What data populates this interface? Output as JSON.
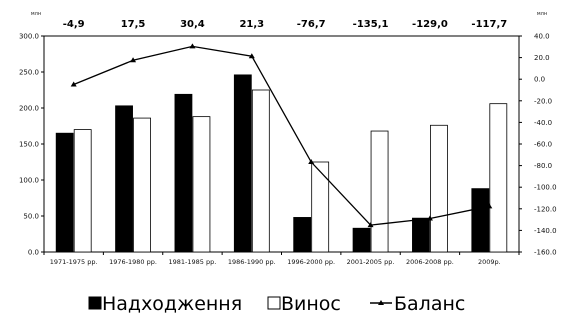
{
  "chart_data": {
    "type": "bar",
    "title": "",
    "left_axis_unit": "млн",
    "right_axis_unit": "млн",
    "categories": [
      "1971-1975 рр.",
      "1976-1980 рр.",
      "1981-1985 рр.",
      "1986-1990 рр.",
      "1996-2000 рр.",
      "2001-2005 рр.",
      "2006-2008 рр.",
      "2009р."
    ],
    "series": [
      {
        "name": "Надходження",
        "kind": "bar",
        "axis": "left",
        "color": "#000000",
        "values": [
          165,
          203,
          219,
          246,
          48,
          33,
          47,
          88
        ]
      },
      {
        "name": "Винос",
        "kind": "bar",
        "axis": "left",
        "color": "#ffffff",
        "values": [
          170,
          186,
          188,
          225,
          125,
          168,
          176,
          206
        ]
      },
      {
        "name": "Баланс",
        "kind": "line",
        "axis": "right",
        "color": "#000000",
        "values": [
          -4.9,
          17.5,
          30.4,
          21.3,
          -76.7,
          -135.1,
          -129.0,
          -117.7
        ]
      }
    ],
    "top_labels": [
      "-4,9",
      "17,5",
      "30,4",
      "21,3",
      "-76,7",
      "-135,1",
      "-129,0",
      "-117,7"
    ],
    "left_axis": {
      "min": 0,
      "max": 300,
      "step": 50,
      "ticks": [
        "0.0",
        "50.0",
        "100.0",
        "150.0",
        "200.0",
        "250.0",
        "300.0"
      ]
    },
    "right_axis": {
      "min": -160,
      "max": 40,
      "step": 20,
      "ticks": [
        "-160.0",
        "-140.0",
        "-120.0",
        "-100.0",
        "-80.0",
        "-60.0",
        "-40.0",
        "-20.0",
        "0.0",
        "20.0",
        "40.0"
      ]
    },
    "grid": false,
    "legend_position": "bottom",
    "legend": [
      "Надходження",
      "Винос",
      "Баланс"
    ]
  }
}
